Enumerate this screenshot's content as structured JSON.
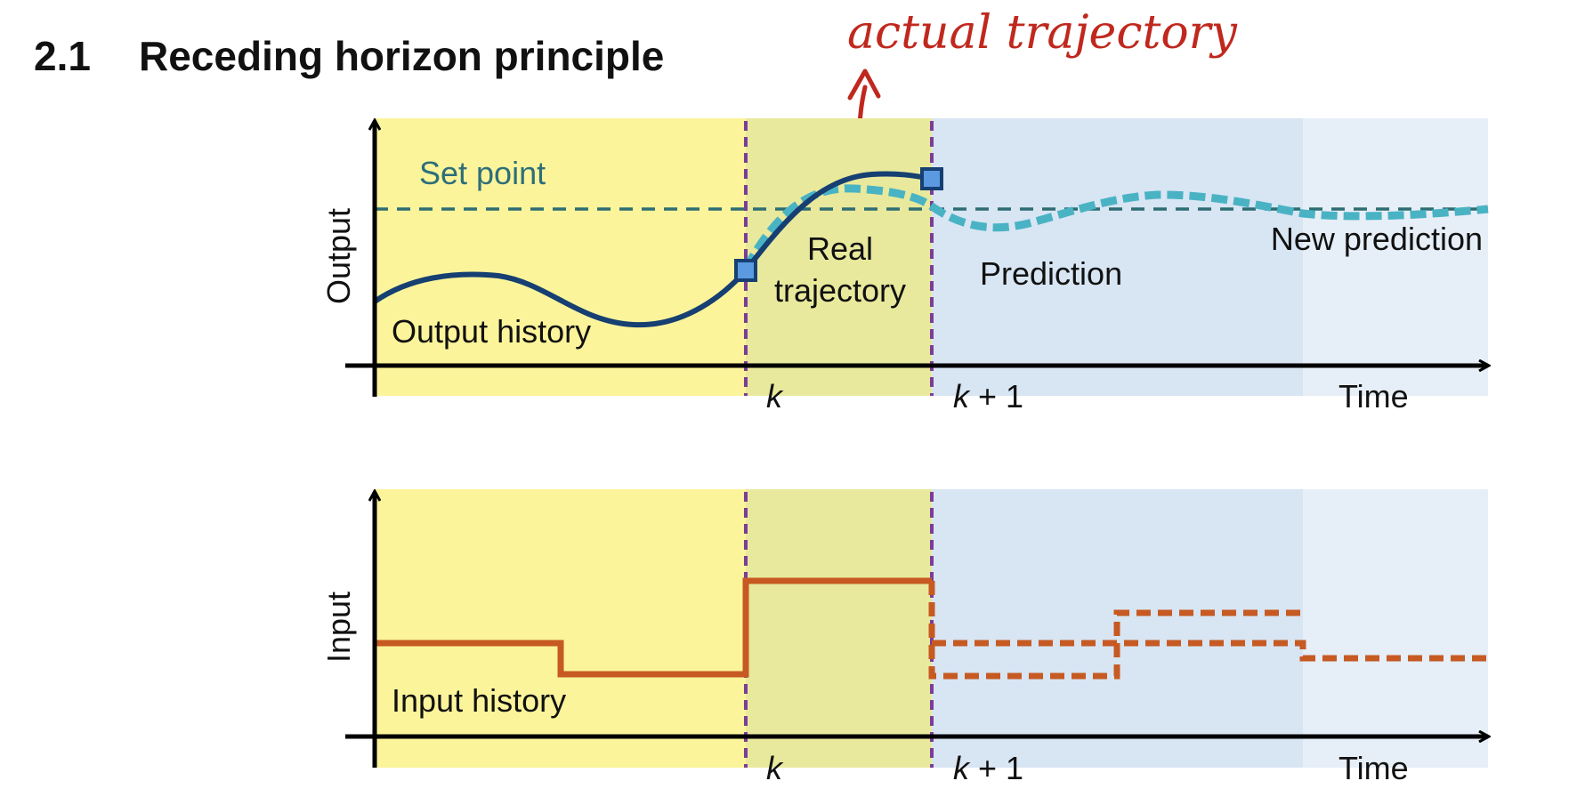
{
  "section": {
    "number": "2.1",
    "title": "Receding horizon principle"
  },
  "annotation": {
    "text": "actual trajectory",
    "color": "#c0281e"
  },
  "top_plot": {
    "y_axis_label": "Output",
    "x_axis_label": "Time",
    "set_point_label": "Set point",
    "output_history_label": "Output history",
    "real_trajectory_label_line1": "Real",
    "real_trajectory_label_line2": "trajectory",
    "prediction_label": "Prediction",
    "new_prediction_label": "New prediction",
    "tick_k": "k",
    "tick_k1_var": "k",
    "tick_k1_rest": " + 1"
  },
  "bottom_plot": {
    "y_axis_label": "Input",
    "x_axis_label": "Time",
    "input_history_label": "Input history",
    "tick_k": "k",
    "tick_k1_var": "k",
    "tick_k1_rest": " + 1"
  },
  "colors": {
    "past_region": "#fbf49a",
    "current_region": "#e8e99c",
    "prediction_region": "#d8e5f3",
    "new_prediction_region": "#e6eef7",
    "output_line": "#163f72",
    "prediction_line": "#49b3c4",
    "set_point_line": "#2d6d72",
    "set_point_text": "#2d6e7a",
    "input_line": "#c65a22",
    "time_marker": "#7b3d96",
    "marker_fill": "#5b9ae0"
  }
}
